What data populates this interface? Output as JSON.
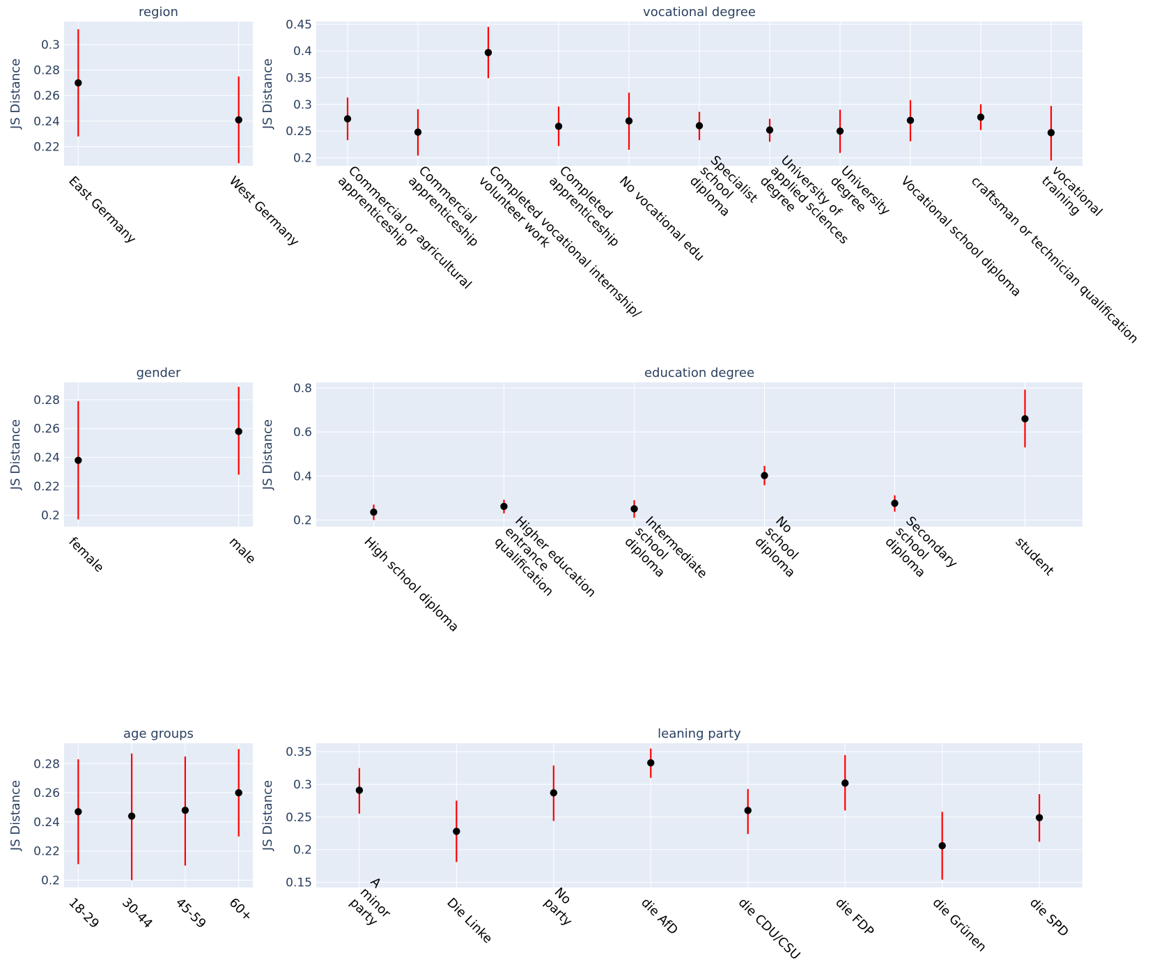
{
  "colors": {
    "plot_bg": "#e5ecf6",
    "grid": "#ffffff",
    "text": "#2a3f5f",
    "point": "#000000",
    "error_bar": "#ff0000"
  },
  "chart_data": [
    {
      "id": "region",
      "type": "scatter",
      "title": "region",
      "ylabel": "JS Distance",
      "ylim": [
        0.205,
        0.318
      ],
      "yticks": [
        0.22,
        0.24,
        0.26,
        0.28,
        0.3
      ],
      "yticklabels": [
        "0.22",
        "0.24",
        "0.26",
        "0.28",
        "0.3"
      ],
      "categories": [
        [
          "East Germany"
        ],
        [
          "West Germany"
        ]
      ],
      "values": [
        0.27,
        0.241
      ],
      "err_low": [
        0.228,
        0.207
      ],
      "err_high": [
        0.312,
        0.275
      ]
    },
    {
      "id": "vocational",
      "type": "scatter",
      "title": "vocational degree",
      "ylabel": "JS Distance",
      "ylim": [
        0.185,
        0.455
      ],
      "yticks": [
        0.2,
        0.25,
        0.3,
        0.35,
        0.4,
        0.45
      ],
      "yticklabels": [
        "0.2",
        "0.25",
        "0.3",
        "0.35",
        "0.4",
        "0.45"
      ],
      "categories": [
        [
          "Commercial or agricultural",
          "apprenticeship"
        ],
        [
          "Commercial",
          "apprenticeship"
        ],
        [
          "Completed vocational internship/",
          "volunteer work"
        ],
        [
          "Completed",
          "apprenticeship"
        ],
        [
          "No vocational edu"
        ],
        [
          "Specialist",
          "school",
          "diploma"
        ],
        [
          "University of",
          "applied sciences",
          "degree"
        ],
        [
          "University",
          "degree"
        ],
        [
          "Vocational school diploma"
        ],
        [
          "craftsman or technician qualification"
        ],
        [
          "vocational",
          "training"
        ]
      ],
      "values": [
        0.273,
        0.248,
        0.397,
        0.259,
        0.269,
        0.26,
        0.252,
        0.25,
        0.27,
        0.276,
        0.247
      ],
      "err_low": [
        0.233,
        0.204,
        0.349,
        0.222,
        0.215,
        0.233,
        0.23,
        0.209,
        0.231,
        0.252,
        0.195
      ],
      "err_high": [
        0.313,
        0.291,
        0.445,
        0.296,
        0.322,
        0.286,
        0.273,
        0.29,
        0.308,
        0.3,
        0.297
      ]
    },
    {
      "id": "gender",
      "type": "scatter",
      "title": "gender",
      "ylabel": "JS Distance",
      "ylim": [
        0.192,
        0.292
      ],
      "yticks": [
        0.2,
        0.22,
        0.24,
        0.26,
        0.28
      ],
      "yticklabels": [
        "0.2",
        "0.22",
        "0.24",
        "0.26",
        "0.28"
      ],
      "categories": [
        [
          "female"
        ],
        [
          "male"
        ]
      ],
      "values": [
        0.238,
        0.258
      ],
      "err_low": [
        0.197,
        0.228
      ],
      "err_high": [
        0.279,
        0.289
      ]
    },
    {
      "id": "education",
      "type": "scatter",
      "title": "education degree",
      "ylabel": "JS Distance",
      "ylim": [
        0.17,
        0.825
      ],
      "yticks": [
        0.2,
        0.4,
        0.6,
        0.8
      ],
      "yticklabels": [
        "0.2",
        "0.4",
        "0.6",
        "0.8"
      ],
      "categories": [
        [
          "High school diploma"
        ],
        [
          "Higher education",
          "entrance",
          "qualification"
        ],
        [
          "Intermediate",
          "school",
          "diploma"
        ],
        [
          "No",
          "school",
          "diploma"
        ],
        [
          "Secondary",
          "school",
          "diploma"
        ],
        [
          "student"
        ]
      ],
      "values": [
        0.236,
        0.262,
        0.251,
        0.402,
        0.276,
        0.66
      ],
      "err_low": [
        0.2,
        0.23,
        0.21,
        0.358,
        0.238,
        0.53
      ],
      "err_high": [
        0.27,
        0.292,
        0.29,
        0.446,
        0.312,
        0.792
      ]
    },
    {
      "id": "age",
      "type": "scatter",
      "title": "age groups",
      "ylabel": "JS Distance",
      "ylim": [
        0.195,
        0.294
      ],
      "yticks": [
        0.2,
        0.22,
        0.24,
        0.26,
        0.28
      ],
      "yticklabels": [
        "0.2",
        "0.22",
        "0.24",
        "0.26",
        "0.28"
      ],
      "categories": [
        [
          "18-29"
        ],
        [
          "30-44"
        ],
        [
          "45-59"
        ],
        [
          "60+"
        ]
      ],
      "values": [
        0.247,
        0.244,
        0.248,
        0.26
      ],
      "err_low": [
        0.211,
        0.2,
        0.21,
        0.23
      ],
      "err_high": [
        0.283,
        0.287,
        0.285,
        0.29
      ]
    },
    {
      "id": "party",
      "type": "scatter",
      "title": "leaning party",
      "ylabel": "JS Distance",
      "ylim": [
        0.142,
        0.363
      ],
      "yticks": [
        0.15,
        0.2,
        0.25,
        0.3,
        0.35
      ],
      "yticklabels": [
        "0.15",
        "0.2",
        "0.25",
        "0.3",
        "0.35"
      ],
      "categories": [
        [
          "A",
          "minor",
          "party"
        ],
        [
          "Die Linke"
        ],
        [
          "No",
          "party"
        ],
        [
          "die AfD"
        ],
        [
          "die CDU/CSU"
        ],
        [
          "die FDP"
        ],
        [
          "die Grünen"
        ],
        [
          "die SPD"
        ]
      ],
      "values": [
        0.291,
        0.228,
        0.287,
        0.333,
        0.26,
        0.302,
        0.206,
        0.249
      ],
      "err_low": [
        0.255,
        0.181,
        0.244,
        0.31,
        0.224,
        0.26,
        0.154,
        0.212
      ],
      "err_high": [
        0.325,
        0.275,
        0.329,
        0.355,
        0.293,
        0.345,
        0.258,
        0.285
      ]
    }
  ]
}
